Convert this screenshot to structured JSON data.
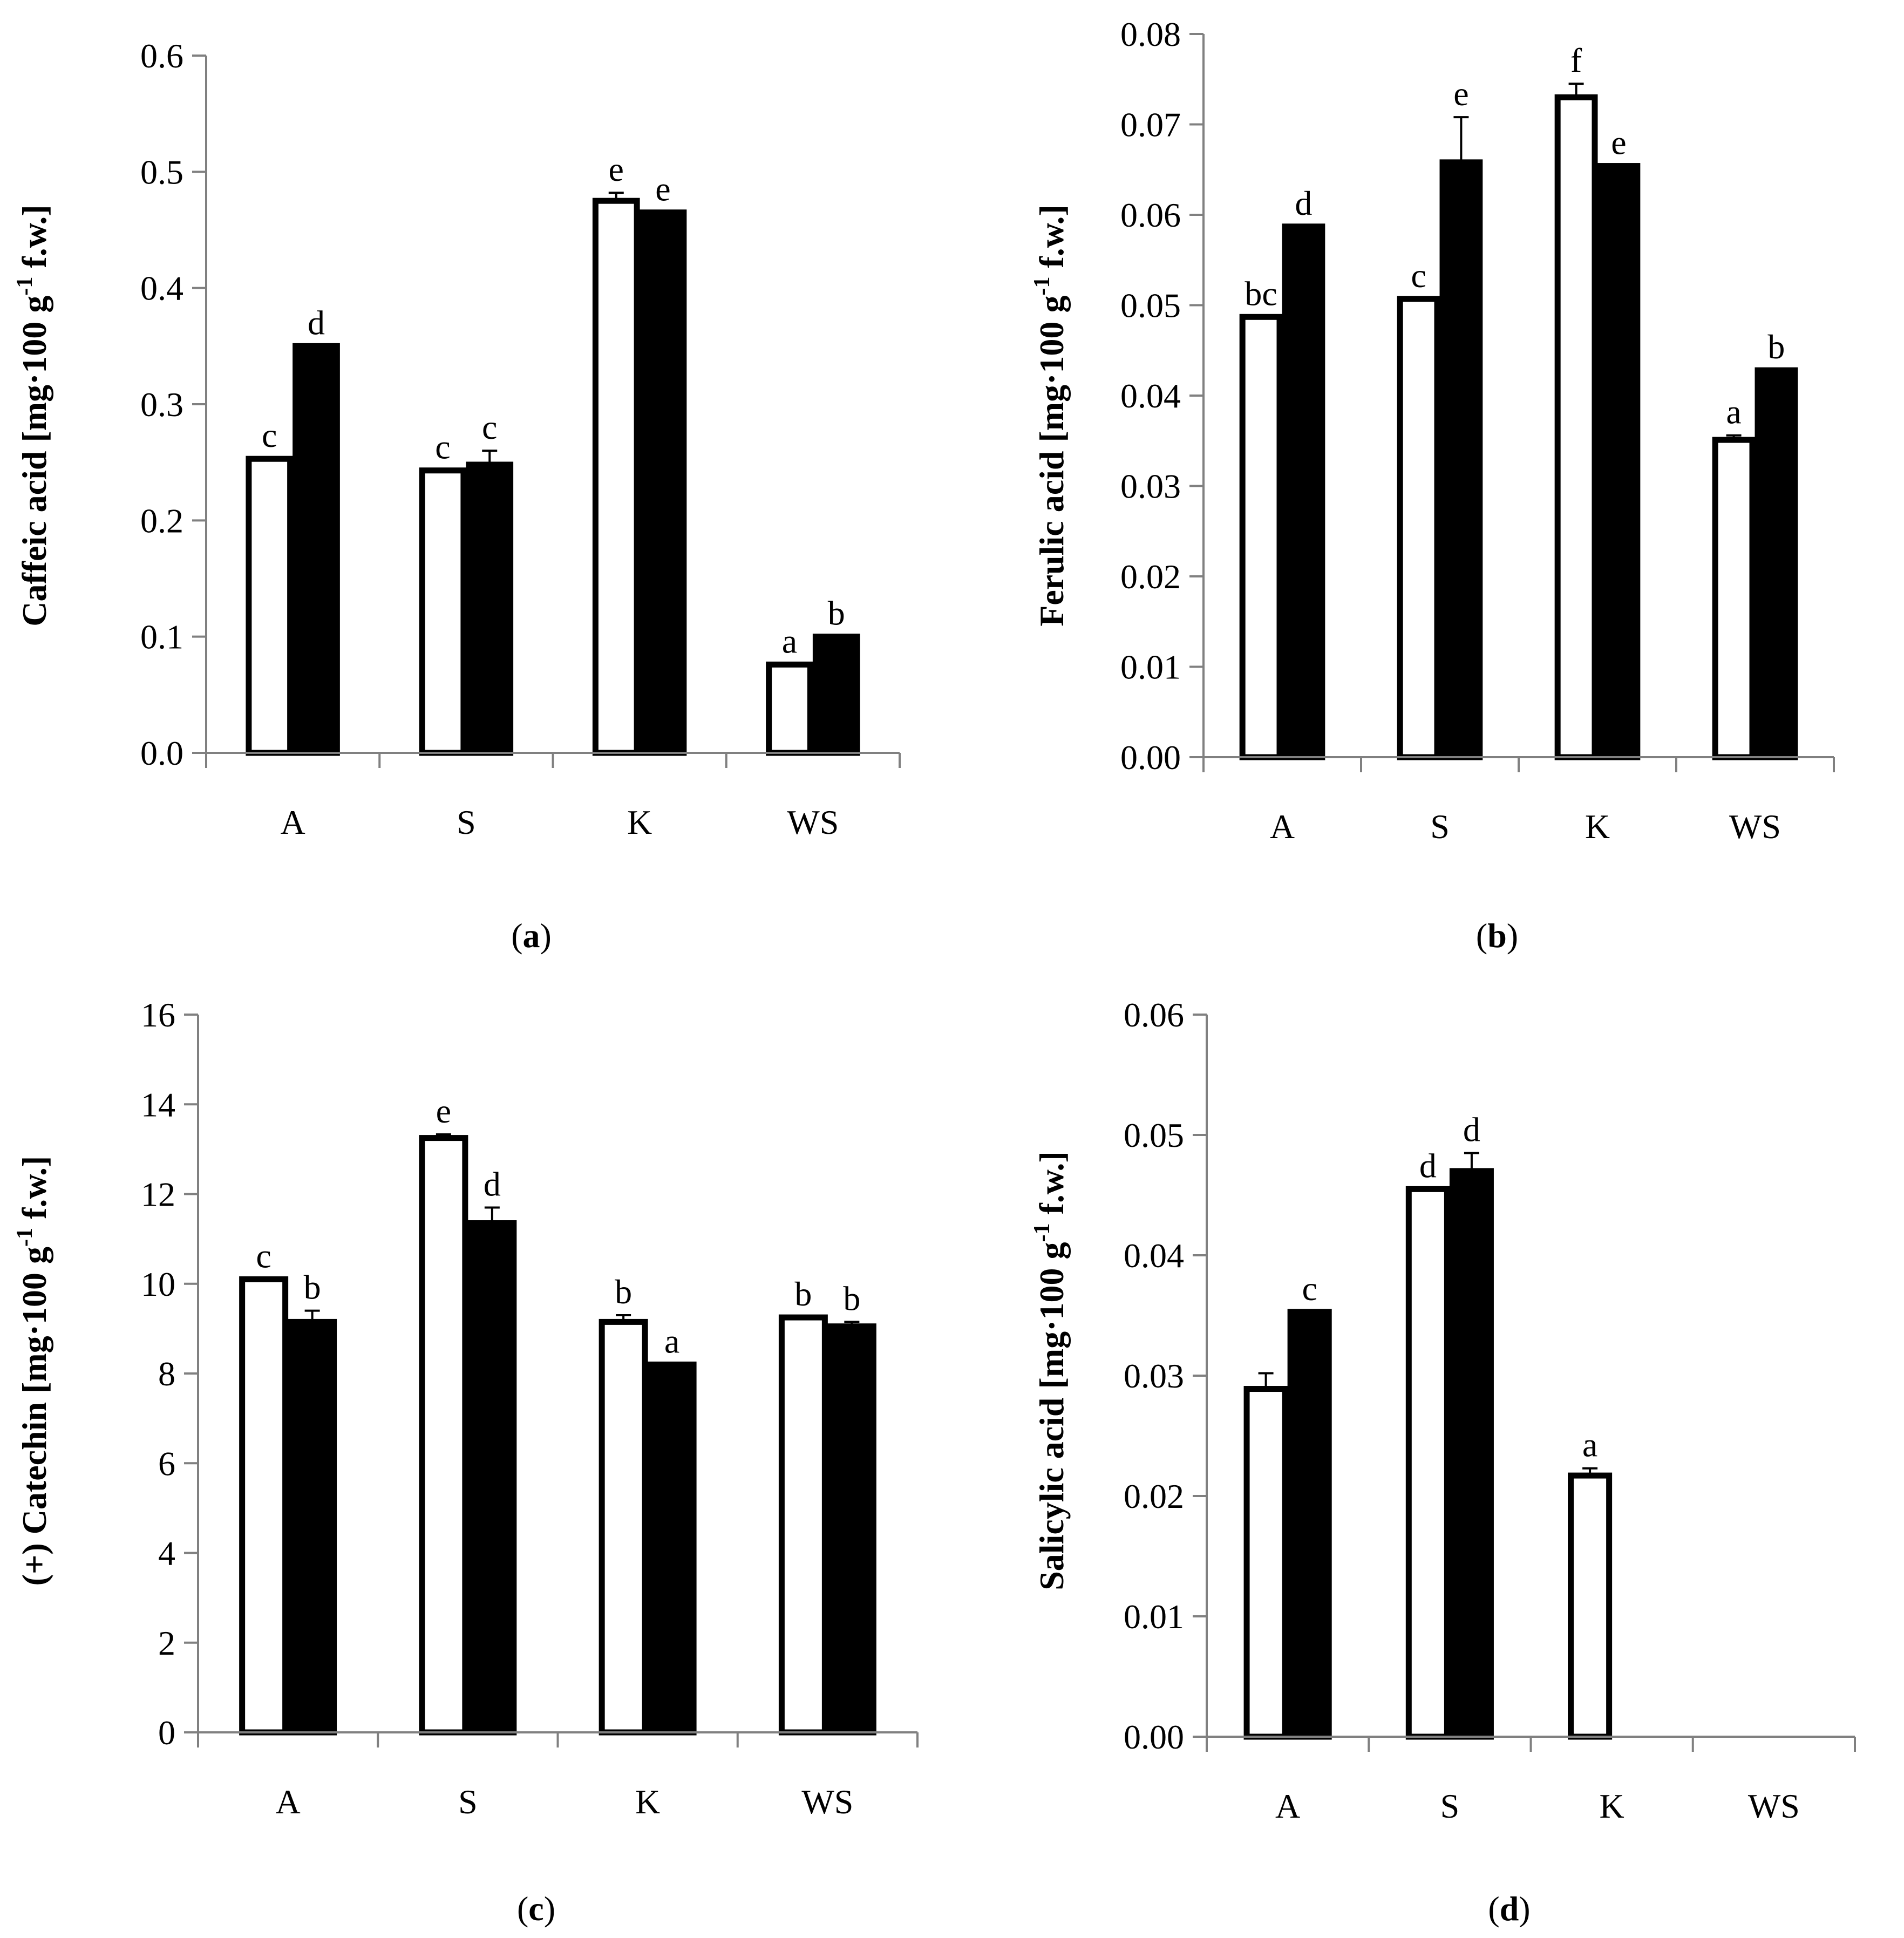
{
  "chart_data": [
    {
      "type": "bar",
      "panel": "a",
      "caption": "a",
      "ylabel_main": "Caffeic acid [mg·100 g",
      "ylabel_sup": "-1",
      "ylabel_end": " f.w.]",
      "ylim": [
        0,
        0.6
      ],
      "yticks": [
        "0.0",
        "0.1",
        "0.2",
        "0.3",
        "0.4",
        "0.5",
        "0.6"
      ],
      "categories": [
        "A",
        "S",
        "K",
        "WS"
      ],
      "series": [
        {
          "name": "white",
          "color": "#ffffff",
          "values": [
            0.253,
            0.243,
            0.475,
            0.076
          ],
          "errors": [
            0,
            0,
            0.007,
            0
          ],
          "letters": [
            "c",
            "c",
            "e",
            "a"
          ]
        },
        {
          "name": "black",
          "color": "#000000",
          "values": [
            0.35,
            0.248,
            0.465,
            0.1
          ],
          "errors": [
            0,
            0.012,
            0,
            0
          ],
          "letters": [
            "d",
            "c",
            "e",
            "b"
          ]
        }
      ]
    },
    {
      "type": "bar",
      "panel": "b",
      "caption": "b",
      "ylabel_main": "Ferulic acid [mg·100 g",
      "ylabel_sup": "-1",
      "ylabel_end": " f.w.]",
      "ylim": [
        0,
        0.08
      ],
      "yticks": [
        "0.00",
        "0.01",
        "0.02",
        "0.03",
        "0.04",
        "0.05",
        "0.06",
        "0.07",
        "0.08"
      ],
      "categories": [
        "A",
        "S",
        "K",
        "WS"
      ],
      "series": [
        {
          "name": "white",
          "color": "#ffffff",
          "values": [
            0.0487,
            0.0507,
            0.073,
            0.0351
          ],
          "errors": [
            0,
            0,
            0.0015,
            0.0005
          ],
          "letters": [
            "bc",
            "c",
            "f",
            "a"
          ]
        },
        {
          "name": "black",
          "color": "#000000",
          "values": [
            0.0587,
            0.0658,
            0.0654,
            0.0428
          ],
          "errors": [
            0,
            0.005,
            0,
            0
          ],
          "letters": [
            "d",
            "e",
            "e",
            "b"
          ]
        }
      ]
    },
    {
      "type": "bar",
      "panel": "c",
      "caption": "c",
      "ylabel_main": "(+) Catechin [mg·100 g",
      "ylabel_sup": "-1",
      "ylabel_end": " f.w.]",
      "ylim": [
        0,
        16
      ],
      "yticks": [
        "0",
        "2",
        "4",
        "6",
        "8",
        "10",
        "12",
        "14",
        "16"
      ],
      "categories": [
        "A",
        "S",
        "K",
        "WS"
      ],
      "series": [
        {
          "name": "white",
          "color": "#ffffff",
          "values": [
            10.1,
            13.25,
            9.15,
            9.25
          ],
          "errors": [
            0,
            0.08,
            0.15,
            0
          ],
          "letters": [
            "c",
            "e",
            "b",
            "b"
          ]
        },
        {
          "name": "black",
          "color": "#000000",
          "values": [
            9.15,
            11.35,
            8.2,
            9.05
          ],
          "errors": [
            0.25,
            0.35,
            0,
            0.1
          ],
          "letters": [
            "b",
            "d",
            "a",
            "b"
          ]
        }
      ]
    },
    {
      "type": "bar",
      "panel": "d",
      "caption": "d",
      "ylabel_main": "Salicylic acid [mg·100 g",
      "ylabel_sup": "-1",
      "ylabel_end": " f.w.]",
      "ylim": [
        0,
        0.06
      ],
      "yticks": [
        "0.00",
        "0.01",
        "0.02",
        "0.03",
        "0.04",
        "0.05",
        "0.06"
      ],
      "categories": [
        "A",
        "S",
        "K",
        "WS"
      ],
      "series": [
        {
          "name": "white",
          "color": "#ffffff",
          "values": [
            0.0289,
            0.0455,
            0.0217,
            null
          ],
          "errors": [
            0.0013,
            0,
            0.0006,
            0
          ],
          "letters": [
            "",
            "d",
            "a",
            ""
          ]
        },
        {
          "name": "black",
          "color": "#000000",
          "values": [
            0.0353,
            0.047,
            null,
            null
          ],
          "errors": [
            0,
            0.0015,
            0,
            0
          ],
          "letters": [
            "c",
            "d",
            "",
            ""
          ]
        }
      ]
    }
  ]
}
